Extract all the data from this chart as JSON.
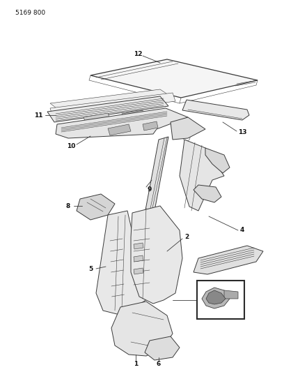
{
  "title": "5169 800",
  "bg_color": "#ffffff",
  "line_color": "#3a3a3a",
  "label_color": "#111111",
  "figsize": [
    4.08,
    5.33
  ],
  "dpi": 100,
  "lw": 0.7,
  "lw_thin": 0.4,
  "lw_thick": 0.9
}
